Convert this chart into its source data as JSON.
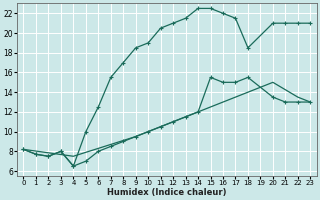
{
  "xlabel": "Humidex (Indice chaleur)",
  "bg_color": "#cce8e8",
  "grid_color": "#ffffff",
  "line_color": "#1a6b5a",
  "xlim": [
    -0.5,
    23.5
  ],
  "ylim": [
    5.5,
    23
  ],
  "yticks": [
    6,
    8,
    10,
    12,
    14,
    16,
    18,
    20,
    22
  ],
  "xticks": [
    0,
    1,
    2,
    3,
    4,
    5,
    6,
    7,
    8,
    9,
    10,
    11,
    12,
    13,
    14,
    15,
    16,
    17,
    18,
    19,
    20,
    21,
    22,
    23
  ],
  "line1_x": [
    0,
    1,
    2,
    3,
    4,
    5,
    6,
    7,
    8,
    9,
    10,
    11,
    12,
    13,
    14,
    15,
    16,
    17,
    18,
    20,
    21,
    22,
    23
  ],
  "line1_y": [
    8.2,
    7.7,
    7.5,
    8.0,
    6.5,
    10.0,
    12.5,
    15.5,
    17.0,
    18.5,
    19.0,
    20.5,
    21.0,
    21.5,
    22.5,
    22.5,
    22.0,
    21.5,
    18.5,
    21.0,
    21.0,
    21.0,
    21.0
  ],
  "line2_x": [
    0,
    1,
    2,
    3,
    4,
    5,
    6,
    7,
    8,
    9,
    10,
    11,
    12,
    13,
    14,
    15,
    16,
    17,
    18,
    20,
    21,
    22,
    23
  ],
  "line2_y": [
    8.2,
    7.7,
    7.5,
    8.0,
    6.5,
    7.0,
    8.0,
    8.5,
    9.0,
    9.5,
    10.0,
    10.5,
    11.0,
    11.5,
    12.0,
    15.5,
    15.0,
    15.0,
    15.5,
    13.5,
    13.0,
    13.0,
    13.0
  ],
  "line3_x": [
    0,
    4,
    9,
    14,
    18,
    20,
    22,
    23
  ],
  "line3_y": [
    8.2,
    7.5,
    9.5,
    12.0,
    14.0,
    15.0,
    13.5,
    13.0
  ]
}
